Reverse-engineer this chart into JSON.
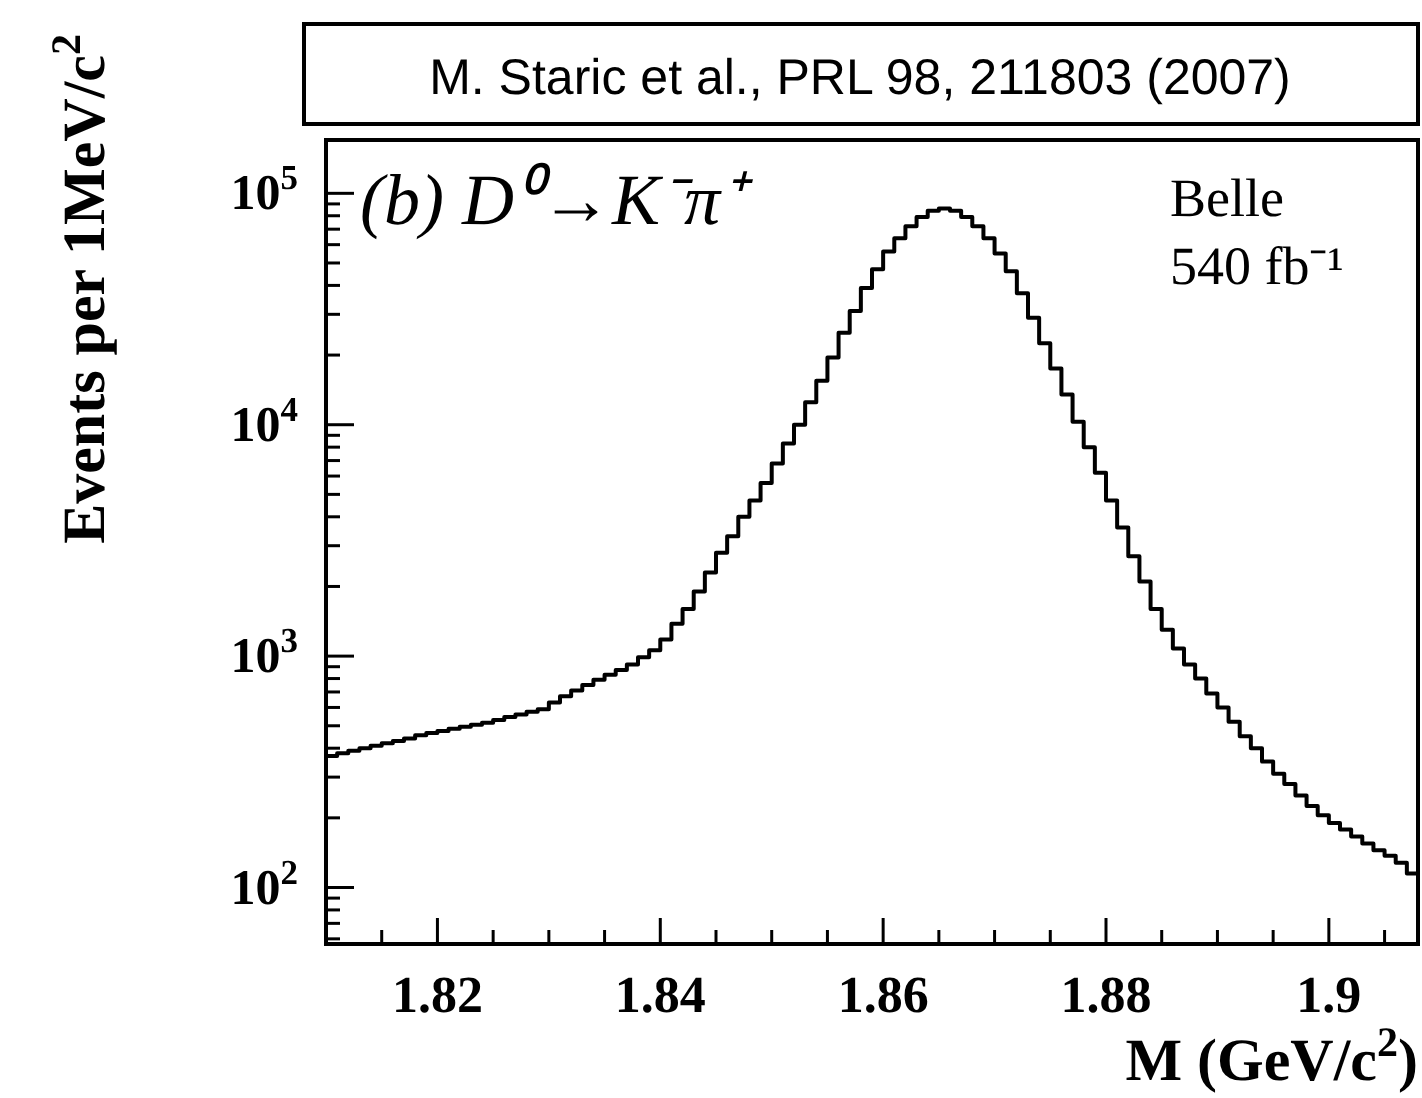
{
  "chart_data": {
    "type": "histogram",
    "title": "M. Staric et al., PRL 98, 211803 (2007)",
    "xlabel": "M (GeV/c$^{2}$)",
    "ylabel": "Events per 1MeV/c$^{2}$",
    "annotations": [
      "(b) D⁰→K⁻π⁺",
      "Belle",
      "540 fb⁻¹"
    ],
    "bins": [
      1.81,
      1.811,
      1.812,
      1.813,
      1.814,
      1.815,
      1.816,
      1.817,
      1.818,
      1.819,
      1.82,
      1.821,
      1.822,
      1.823,
      1.824,
      1.825,
      1.826,
      1.827,
      1.828,
      1.829,
      1.83,
      1.831,
      1.832,
      1.833,
      1.834,
      1.835,
      1.836,
      1.837,
      1.838,
      1.839,
      1.84,
      1.841,
      1.842,
      1.843,
      1.844,
      1.845,
      1.846,
      1.847,
      1.848,
      1.849,
      1.85,
      1.851,
      1.852,
      1.853,
      1.854,
      1.855,
      1.856,
      1.857,
      1.858,
      1.859,
      1.86,
      1.861,
      1.862,
      1.863,
      1.864,
      1.865,
      1.866,
      1.867,
      1.868,
      1.869,
      1.87,
      1.871,
      1.872,
      1.873,
      1.874,
      1.875,
      1.876,
      1.877,
      1.878,
      1.879,
      1.88,
      1.881,
      1.882,
      1.883,
      1.884,
      1.885,
      1.886,
      1.887,
      1.888,
      1.889,
      1.89,
      1.891,
      1.892,
      1.893,
      1.894,
      1.895,
      1.896,
      1.897,
      1.898,
      1.899,
      1.9,
      1.901,
      1.902,
      1.903,
      1.904,
      1.905,
      1.906,
      1.907,
      1.908
    ],
    "values": [
      370,
      380,
      390,
      400,
      410,
      420,
      430,
      440,
      455,
      465,
      475,
      485,
      495,
      505,
      515,
      530,
      545,
      560,
      575,
      590,
      630,
      670,
      710,
      750,
      790,
      830,
      870,
      920,
      990,
      1060,
      1180,
      1380,
      1600,
      1900,
      2300,
      2800,
      3300,
      4000,
      4700,
      5600,
      6800,
      8300,
      10000,
      12500,
      15500,
      19500,
      25000,
      31000,
      39000,
      47000,
      56000,
      64000,
      72000,
      79000,
      84000,
      86000,
      84000,
      79000,
      72000,
      64000,
      55000,
      46000,
      37000,
      29000,
      22500,
      17500,
      13500,
      10300,
      8000,
      6200,
      4700,
      3600,
      2700,
      2100,
      1600,
      1300,
      1080,
      920,
      800,
      690,
      600,
      520,
      450,
      400,
      350,
      310,
      280,
      250,
      225,
      205,
      190,
      178,
      166,
      155,
      145,
      137,
      128,
      115
    ],
    "color": "#000000",
    "log": "y",
    "xlim": [
      1.81,
      1.908
    ],
    "ylim": [
      57,
      170000
    ],
    "xticks": [
      {
        "value": 1.815,
        "label": null
      },
      1.82,
      {
        "value": 1.825,
        "label": null
      },
      {
        "value": 1.83,
        "label": null
      },
      {
        "value": 1.835,
        "label": null
      },
      1.84,
      {
        "value": 1.845,
        "label": null
      },
      {
        "value": 1.85,
        "label": null
      },
      {
        "value": 1.855,
        "label": null
      },
      1.86,
      {
        "value": 1.865,
        "label": null
      },
      {
        "value": 1.87,
        "label": null
      },
      {
        "value": 1.875,
        "label": null
      },
      1.88,
      {
        "value": 1.885,
        "label": null
      },
      {
        "value": 1.89,
        "label": null
      },
      {
        "value": 1.895,
        "label": null
      },
      1.9,
      {
        "value": 1.905,
        "label": null
      }
    ],
    "yticks": [
      {
        "value": 60,
        "label": null
      },
      {
        "value": 70,
        "label": null
      },
      {
        "value": 80,
        "label": null
      },
      {
        "value": 90,
        "label": null
      },
      {
        "value": 100,
        "label": "10$^{2}$"
      },
      {
        "value": 200,
        "label": null
      },
      {
        "value": 300,
        "label": null
      },
      {
        "value": 400,
        "label": null
      },
      {
        "value": 500,
        "label": null
      },
      {
        "value": 600,
        "label": null
      },
      {
        "value": 700,
        "label": null
      },
      {
        "value": 800,
        "label": null
      },
      {
        "value": 900,
        "label": null
      },
      {
        "value": 1000,
        "label": "10$^{3}$"
      },
      {
        "value": 2000,
        "label": null
      },
      {
        "value": 3000,
        "label": null
      },
      {
        "value": 4000,
        "label": null
      },
      {
        "value": 5000,
        "label": null
      },
      {
        "value": 6000,
        "label": null
      },
      {
        "value": 7000,
        "label": null
      },
      {
        "value": 8000,
        "label": null
      },
      {
        "value": 9000,
        "label": null
      },
      {
        "value": 10000,
        "label": "10$^{4}$"
      },
      {
        "value": 20000,
        "label": null
      },
      {
        "value": 30000,
        "label": null
      },
      {
        "value": 40000,
        "label": null
      },
      {
        "value": 50000,
        "label": null
      },
      {
        "value": 60000,
        "label": null
      },
      {
        "value": 70000,
        "label": null
      },
      {
        "value": 80000,
        "label": null
      },
      {
        "value": 90000,
        "label": null
      },
      {
        "value": 100000,
        "label": "10$^{5}$"
      }
    ],
    "grid": false
  }
}
